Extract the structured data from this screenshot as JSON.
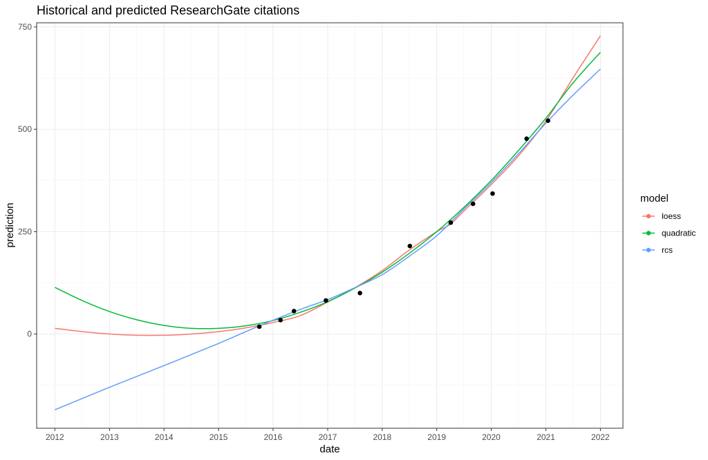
{
  "chart_data": {
    "type": "line",
    "title": "Historical and predicted ResearchGate citations",
    "xlabel": "date",
    "ylabel": "prediction",
    "xlim": [
      "2011-09-01",
      "2022-06-01"
    ],
    "ylim": [
      -230,
      760
    ],
    "x_ticks": [
      "2012",
      "2013",
      "2014",
      "2015",
      "2016",
      "2017",
      "2018",
      "2019",
      "2020",
      "2021",
      "2022"
    ],
    "y_ticks": [
      0,
      250,
      500,
      750
    ],
    "y_tick_labels": [
      "0",
      "250",
      "500",
      "750"
    ],
    "grid": true,
    "legend": {
      "title": "model",
      "position": "right",
      "entries": [
        "loess",
        "quadratic",
        "rcs"
      ]
    },
    "series": [
      {
        "name": "loess",
        "color": "#F8766D",
        "x": [
          "2012-01-01",
          "2012-07-01",
          "2013-01-01",
          "2013-07-01",
          "2014-01-01",
          "2014-07-01",
          "2015-01-01",
          "2015-07-01",
          "2016-01-01",
          "2016-07-01",
          "2017-01-01",
          "2017-07-01",
          "2018-01-01",
          "2018-07-01",
          "2019-01-01",
          "2019-04-01",
          "2019-07-01",
          "2020-01-01",
          "2020-07-01",
          "2021-01-01",
          "2021-07-01",
          "2022-01-01"
        ],
        "y": [
          14,
          6,
          0,
          -3,
          -3,
          0,
          6,
          15,
          28,
          45,
          78,
          113,
          155,
          205,
          250,
          268,
          300,
          365,
          435,
          520,
          625,
          728
        ]
      },
      {
        "name": "quadratic",
        "color": "#00BA38",
        "x": [
          "2012-01-01",
          "2012-07-01",
          "2013-01-01",
          "2013-07-01",
          "2014-01-01",
          "2014-07-01",
          "2015-01-01",
          "2015-07-01",
          "2016-01-01",
          "2016-07-01",
          "2017-01-01",
          "2017-07-01",
          "2018-01-01",
          "2018-07-01",
          "2019-01-01",
          "2019-07-01",
          "2020-01-01",
          "2020-07-01",
          "2021-01-01",
          "2021-07-01",
          "2022-01-01"
        ],
        "y": [
          114,
          82,
          55,
          35,
          21,
          14,
          14,
          20,
          33,
          53,
          79,
          112,
          151,
          197,
          250,
          309,
          375,
          448,
          527,
          613,
          688
        ]
      },
      {
        "name": "rcs",
        "color": "#619CFF",
        "x": [
          "2012-01-01",
          "2013-01-01",
          "2014-01-01",
          "2015-01-01",
          "2015-10-01",
          "2016-07-01",
          "2017-01-01",
          "2017-07-01",
          "2018-01-01",
          "2018-07-01",
          "2019-01-01",
          "2019-07-01",
          "2020-01-01",
          "2020-07-01",
          "2021-01-01",
          "2021-07-01",
          "2022-01-01"
        ],
        "y": [
          -185,
          -130,
          -77,
          -23,
          20,
          60,
          84,
          113,
          145,
          190,
          240,
          305,
          370,
          440,
          515,
          583,
          647
        ]
      }
    ],
    "points": {
      "name": "observed",
      "color": "#000000",
      "x": [
        "2015-10-01",
        "2016-02-20",
        "2016-05-20",
        "2016-12-20",
        "2017-08-05",
        "2018-07-05",
        "2019-04-05",
        "2019-09-01",
        "2020-01-10",
        "2020-08-25",
        "2021-01-15"
      ],
      "y": [
        18,
        34,
        56,
        82,
        100,
        215,
        272,
        318,
        343,
        477,
        521
      ]
    }
  }
}
